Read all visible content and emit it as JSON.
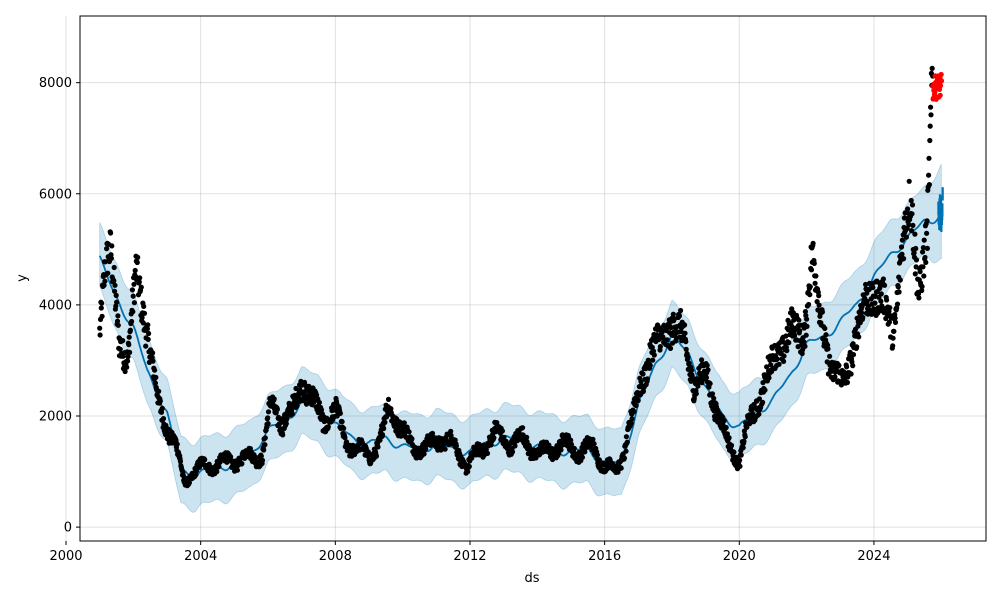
{
  "chart_data": {
    "type": "line",
    "title": "",
    "xlabel": "ds",
    "ylabel": "y",
    "xlim": [
      "2000-06-01",
      "2027-05-01"
    ],
    "ylim": [
      -250,
      9200
    ],
    "x_ticks": [
      "2000",
      "2004",
      "2008",
      "2012",
      "2016",
      "2020",
      "2024"
    ],
    "y_ticks": [
      "0",
      "2000",
      "4000",
      "6000",
      "8000"
    ],
    "y_tick_values": [
      0,
      2000,
      4000,
      6000,
      8000
    ],
    "grid": true,
    "legend": "none",
    "colors": {
      "observed": "#000000",
      "forecast_line": "#0072B2",
      "uncertainty_band": "#0072B2",
      "test_points": "#ff0000"
    },
    "series": [
      {
        "role": "observed",
        "mark": "scatter",
        "x": [
          "2001-01-01",
          "2001-03-01",
          "2001-05-01",
          "2001-08-01",
          "2001-11-01",
          "2002-02-01",
          "2002-06-01",
          "2002-10-01",
          "2003-01-01",
          "2003-04-01",
          "2003-07-01",
          "2003-10-01",
          "2004-03-01",
          "2004-08-01",
          "2005-01-01",
          "2005-06-01",
          "2005-11-01",
          "2006-02-01",
          "2006-06-01",
          "2006-10-01",
          "2007-01-01",
          "2007-05-01",
          "2007-09-01",
          "2008-01-01",
          "2008-05-01",
          "2008-09-01",
          "2009-01-01",
          "2009-05-01",
          "2009-08-01",
          "2009-12-01",
          "2010-04-01",
          "2010-09-01",
          "2011-02-01",
          "2011-07-01",
          "2011-12-01",
          "2012-05-01",
          "2012-10-01",
          "2013-03-01",
          "2013-08-01",
          "2014-01-01",
          "2014-06-01",
          "2014-11-01",
          "2015-04-01",
          "2015-09-01",
          "2016-01-01",
          "2016-05-01",
          "2016-08-01",
          "2016-11-01",
          "2017-02-01",
          "2017-06-01",
          "2017-09-01",
          "2018-01-01",
          "2018-05-01",
          "2018-09-01",
          "2019-01-01",
          "2019-05-01",
          "2019-09-01",
          "2020-01-01",
          "2020-04-01",
          "2020-08-01",
          "2021-01-01",
          "2021-05-01",
          "2021-08-01",
          "2021-12-01",
          "2022-03-01",
          "2022-06-01",
          "2022-10-01",
          "2023-02-01",
          "2023-06-01",
          "2023-10-01",
          "2024-02-01",
          "2024-05-01",
          "2024-08-01",
          "2024-11-01",
          "2025-02-01",
          "2025-05-01",
          "2025-08-01",
          "2025-10-01"
        ],
        "y": [
          3600,
          4700,
          4900,
          3400,
          3000,
          4600,
          3500,
          2200,
          1800,
          1500,
          800,
          1000,
          1100,
          1150,
          1200,
          1250,
          1300,
          2200,
          1900,
          2100,
          2600,
          2300,
          1900,
          2100,
          1500,
          1400,
          1300,
          1500,
          2200,
          1800,
          1500,
          1400,
          1600,
          1500,
          1100,
          1400,
          1700,
          1500,
          1600,
          1300,
          1400,
          1500,
          1350,
          1450,
          1100,
          1000,
          1400,
          2000,
          2600,
          3200,
          3400,
          3600,
          3500,
          2500,
          2800,
          2100,
          1500,
          1200,
          1800,
          2300,
          3000,
          3300,
          3600,
          3400,
          4900,
          3800,
          2800,
          2600,
          3300,
          4100,
          4200,
          4000,
          3500,
          5000,
          5900,
          4300,
          5200,
          8200
        ]
      },
      {
        "role": "trend",
        "mark": "line",
        "x": [
          "2001-01-01",
          "2001-06-01",
          "2002-01-01",
          "2002-06-01",
          "2003-01-01",
          "2003-06-01",
          "2003-11-01",
          "2004-06-01",
          "2005-01-01",
          "2005-07-01",
          "2006-01-01",
          "2006-07-01",
          "2007-01-01",
          "2007-07-01",
          "2008-01-01",
          "2008-07-01",
          "2009-01-01",
          "2009-07-01",
          "2010-01-01",
          "2010-07-01",
          "2011-01-01",
          "2011-07-01",
          "2012-01-01",
          "2012-07-01",
          "2013-01-01",
          "2013-07-01",
          "2014-01-01",
          "2014-07-01",
          "2015-01-01",
          "2015-07-01",
          "2016-01-01",
          "2016-07-01",
          "2017-01-01",
          "2017-07-01",
          "2018-01-01",
          "2018-07-01",
          "2019-01-01",
          "2019-07-01",
          "2020-01-01",
          "2020-07-01",
          "2021-01-01",
          "2021-07-01",
          "2022-01-01",
          "2022-07-01",
          "2023-01-01",
          "2023-07-01",
          "2024-01-01",
          "2024-07-01",
          "2025-01-01",
          "2025-07-01",
          "2026-01-01"
        ],
        "y": [
          4850,
          4200,
          3600,
          2800,
          2050,
          1000,
          950,
          1050,
          1150,
          1300,
          1750,
          1900,
          2250,
          2100,
          1850,
          1600,
          1500,
          1600,
          1450,
          1400,
          1500,
          1400,
          1350,
          1500,
          1600,
          1550,
          1450,
          1400,
          1350,
          1400,
          1150,
          1150,
          2200,
          2900,
          3450,
          3100,
          2500,
          2000,
          1800,
          2050,
          2300,
          2700,
          3300,
          3400,
          3700,
          4000,
          4500,
          4900,
          5200,
          5500,
          5600
        ]
      },
      {
        "role": "uncertainty_lower",
        "mark": "area",
        "x": [
          "2001-01-01",
          "2001-06-01",
          "2002-01-01",
          "2002-06-01",
          "2003-01-01",
          "2003-06-01",
          "2003-11-01",
          "2004-06-01",
          "2005-01-01",
          "2005-07-01",
          "2006-01-01",
          "2006-07-01",
          "2007-01-01",
          "2007-07-01",
          "2008-01-01",
          "2008-07-01",
          "2009-01-01",
          "2009-07-01",
          "2010-01-01",
          "2010-07-01",
          "2011-01-01",
          "2011-07-01",
          "2012-01-01",
          "2012-07-01",
          "2013-01-01",
          "2013-07-01",
          "2014-01-01",
          "2014-07-01",
          "2015-01-01",
          "2015-07-01",
          "2016-01-01",
          "2016-07-01",
          "2017-01-01",
          "2017-07-01",
          "2018-01-01",
          "2018-07-01",
          "2019-01-01",
          "2019-07-01",
          "2020-01-01",
          "2020-07-01",
          "2021-01-01",
          "2021-07-01",
          "2022-01-01",
          "2022-07-01",
          "2023-01-01",
          "2023-07-01",
          "2024-01-01",
          "2024-07-01",
          "2025-01-01",
          "2025-07-01",
          "2026-01-01"
        ],
        "y": [
          4300,
          3600,
          3000,
          2200,
          1500,
          400,
          350,
          450,
          550,
          700,
          1150,
          1300,
          1650,
          1500,
          1250,
          1000,
          900,
          1000,
          850,
          800,
          900,
          800,
          750,
          900,
          1000,
          950,
          850,
          800,
          750,
          800,
          550,
          550,
          1600,
          2300,
          2850,
          2500,
          1900,
          1400,
          1200,
          1450,
          1700,
          2100,
          2700,
          2800,
          3100,
          3400,
          3900,
          4300,
          4600,
          4900,
          4800
        ]
      },
      {
        "role": "uncertainty_upper",
        "mark": "area",
        "x": [
          "2001-01-01",
          "2001-06-01",
          "2002-01-01",
          "2002-06-01",
          "2003-01-01",
          "2003-06-01",
          "2003-11-01",
          "2004-06-01",
          "2005-01-01",
          "2005-07-01",
          "2006-01-01",
          "2006-07-01",
          "2007-01-01",
          "2007-07-01",
          "2008-01-01",
          "2008-07-01",
          "2009-01-01",
          "2009-07-01",
          "2010-01-01",
          "2010-07-01",
          "2011-01-01",
          "2011-07-01",
          "2012-01-01",
          "2012-07-01",
          "2013-01-01",
          "2013-07-01",
          "2014-01-01",
          "2014-07-01",
          "2015-01-01",
          "2015-07-01",
          "2016-01-01",
          "2016-07-01",
          "2017-01-01",
          "2017-07-01",
          "2018-01-01",
          "2018-07-01",
          "2019-01-01",
          "2019-07-01",
          "2020-01-01",
          "2020-07-01",
          "2021-01-01",
          "2021-07-01",
          "2022-01-01",
          "2022-07-01",
          "2023-01-01",
          "2023-07-01",
          "2024-01-01",
          "2024-07-01",
          "2025-01-01",
          "2025-07-01",
          "2026-01-01"
        ],
        "y": [
          5450,
          4800,
          4200,
          3400,
          2650,
          1600,
          1550,
          1650,
          1750,
          1900,
          2350,
          2500,
          2850,
          2700,
          2450,
          2200,
          2100,
          2200,
          2050,
          2000,
          2100,
          2000,
          1950,
          2100,
          2200,
          2150,
          2050,
          2000,
          1950,
          2000,
          1750,
          1750,
          2800,
          3500,
          4050,
          3700,
          3100,
          2600,
          2400,
          2650,
          2900,
          3300,
          3900,
          4000,
          4300,
          4600,
          5100,
          5500,
          5800,
          6100,
          6500
        ]
      },
      {
        "role": "forecast",
        "mark": "line",
        "x": [
          "2025-12-01",
          "2026-01-01"
        ],
        "y": [
          5500,
          6000
        ]
      },
      {
        "role": "test",
        "mark": "scatter",
        "x": [
          "2025-10-01",
          "2025-11-01",
          "2025-12-01"
        ],
        "y": [
          7800,
          8100,
          7900
        ]
      }
    ]
  }
}
